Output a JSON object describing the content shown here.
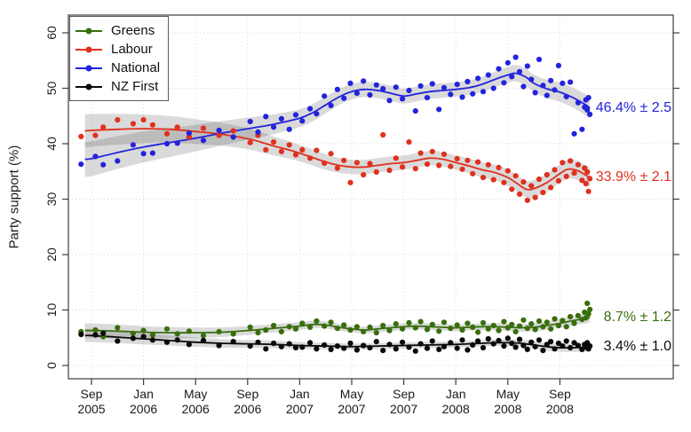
{
  "chart_data": {
    "type": "scatter",
    "description": "Opinion poll party support over time: scatter of individual polls with smoothed trend lines and gray confidence bands",
    "ylabel": "Party support (%)",
    "x_axis": {
      "unit": "months since Sep 2005",
      "ticks": [
        {
          "m": 0,
          "top": "Sep",
          "bottom": "2005"
        },
        {
          "m": 4,
          "top": "Jan",
          "bottom": "2006"
        },
        {
          "m": 8,
          "top": "May",
          "bottom": "2006"
        },
        {
          "m": 12,
          "top": "Sep",
          "bottom": "2006"
        },
        {
          "m": 16,
          "top": "Jan",
          "bottom": "2007"
        },
        {
          "m": 20,
          "top": "May",
          "bottom": "2007"
        },
        {
          "m": 24,
          "top": "Sep",
          "bottom": "2007"
        },
        {
          "m": 28,
          "top": "Jan",
          "bottom": "2008"
        },
        {
          "m": 32,
          "top": "May",
          "bottom": "2008"
        },
        {
          "m": 36,
          "top": "Sep",
          "bottom": "2008"
        }
      ]
    },
    "y_axis": {
      "ticks": [
        0,
        10,
        20,
        30,
        40,
        50,
        60
      ],
      "range": [
        0,
        60
      ]
    },
    "grid": {
      "style": "dotted",
      "color": "#d8d8d8"
    },
    "legend": {
      "position": "top-left"
    },
    "band_fill": "rgba(70,70,70,0.20)",
    "poll_columns": [
      "month",
      "Greens",
      "Labour",
      "National",
      "NZ First"
    ],
    "polls": [
      [
        -0.8,
        6.1,
        41.3,
        36.3,
        5.6
      ],
      [
        0.3,
        6.4,
        41.5,
        37.7,
        5.5
      ],
      [
        0.9,
        5.2,
        43.0,
        36.2,
        5.8
      ],
      [
        2.0,
        6.8,
        44.3,
        36.9,
        4.4
      ],
      [
        3.2,
        5.8,
        43.6,
        39.8,
        4.9
      ],
      [
        4.0,
        6.3,
        44.3,
        38.2,
        5.2
      ],
      [
        4.7,
        5.5,
        43.4,
        38.3,
        4.6
      ],
      [
        5.8,
        6.6,
        41.8,
        40.0,
        4.2
      ],
      [
        6.6,
        5.7,
        43.0,
        40.1,
        4.6
      ],
      [
        7.5,
        6.2,
        41.2,
        41.9,
        3.8
      ],
      [
        8.6,
        5.4,
        42.8,
        40.6,
        4.5
      ],
      [
        9.8,
        6.1,
        41.5,
        42.4,
        3.6
      ],
      [
        10.9,
        5.7,
        42.3,
        41.2,
        4.3
      ],
      [
        12.2,
        6.9,
        40.2,
        44.0,
        3.5
      ],
      [
        12.8,
        5.9,
        41.5,
        42.1,
        4.2
      ],
      [
        13.4,
        6.4,
        38.9,
        44.9,
        3.0
      ],
      [
        14.0,
        7.2,
        40.3,
        43.0,
        4.0
      ],
      [
        14.6,
        6.1,
        38.6,
        44.5,
        3.4
      ],
      [
        15.2,
        7.0,
        39.8,
        42.6,
        3.9
      ],
      [
        15.7,
        6.6,
        38.0,
        45.2,
        3.2
      ],
      [
        16.2,
        7.6,
        38.9,
        44.1,
        3.3
      ],
      [
        16.8,
        6.9,
        37.4,
        46.3,
        4.1
      ],
      [
        17.3,
        8.0,
        38.8,
        45.4,
        3.0
      ],
      [
        17.9,
        7.1,
        36.5,
        48.6,
        3.7
      ],
      [
        18.4,
        7.8,
        38.2,
        46.9,
        2.9
      ],
      [
        18.9,
        6.7,
        35.6,
        49.8,
        3.5
      ],
      [
        19.4,
        7.3,
        37.0,
        48.2,
        3.1
      ],
      [
        19.9,
        6.4,
        33.0,
        50.9,
        4.0
      ],
      [
        20.4,
        7.0,
        36.6,
        49.1,
        2.8
      ],
      [
        20.9,
        6.1,
        34.4,
        51.3,
        3.6
      ],
      [
        21.4,
        6.9,
        36.4,
        48.8,
        3.2
      ],
      [
        21.9,
        5.9,
        34.9,
        50.6,
        4.3
      ],
      [
        22.4,
        7.2,
        41.6,
        49.9,
        2.7
      ],
      [
        22.9,
        6.3,
        35.2,
        47.8,
        3.8
      ],
      [
        23.4,
        7.5,
        37.4,
        50.2,
        3.0
      ],
      [
        23.9,
        6.6,
        35.8,
        48.1,
        4.2
      ],
      [
        24.4,
        7.7,
        40.3,
        49.6,
        3.3
      ],
      [
        24.9,
        6.8,
        35.5,
        45.9,
        2.6
      ],
      [
        25.3,
        7.9,
        38.3,
        50.4,
        3.9
      ],
      [
        25.8,
        6.5,
        36.3,
        48.3,
        3.1
      ],
      [
        26.2,
        7.4,
        38.6,
        50.8,
        4.4
      ],
      [
        26.7,
        6.2,
        36.1,
        46.2,
        2.9
      ],
      [
        27.1,
        7.8,
        38.1,
        50.1,
        3.4
      ],
      [
        27.6,
        6.7,
        35.9,
        48.9,
        4.1
      ],
      [
        28.1,
        7.3,
        37.3,
        50.7,
        3.1
      ],
      [
        28.5,
        6.4,
        35.4,
        48.4,
        4.6
      ],
      [
        28.9,
        7.6,
        37.0,
        51.2,
        2.8
      ],
      [
        29.3,
        6.9,
        34.6,
        49.0,
        3.7
      ],
      [
        29.7,
        6.0,
        36.7,
        51.8,
        4.4
      ],
      [
        30.1,
        7.7,
        33.9,
        49.4,
        3.2
      ],
      [
        30.5,
        6.6,
        36.2,
        52.4,
        4.8
      ],
      [
        30.9,
        7.2,
        33.5,
        50.0,
        3.9
      ],
      [
        31.3,
        6.3,
        35.7,
        53.5,
        4.5
      ],
      [
        31.7,
        7.9,
        33.0,
        51.0,
        3.5
      ],
      [
        32.0,
        6.8,
        35.1,
        54.6,
        4.9
      ],
      [
        32.3,
        7.4,
        31.8,
        52.1,
        4.0
      ],
      [
        32.6,
        6.1,
        34.2,
        55.6,
        3.3
      ],
      [
        32.9,
        7.1,
        30.9,
        53.0,
        4.7
      ],
      [
        33.2,
        8.2,
        33.1,
        50.3,
        3.6
      ],
      [
        33.5,
        6.7,
        29.8,
        54.0,
        2.9
      ],
      [
        33.8,
        7.5,
        32.4,
        51.6,
        4.2
      ],
      [
        34.1,
        6.5,
        30.3,
        49.2,
        3.4
      ],
      [
        34.4,
        8.0,
        33.6,
        55.2,
        4.6
      ],
      [
        34.7,
        7.0,
        31.2,
        50.5,
        2.7
      ],
      [
        35.0,
        7.8,
        34.4,
        48.7,
        3.8
      ],
      [
        35.3,
        6.6,
        32.1,
        51.4,
        4.3
      ],
      [
        35.6,
        8.4,
        35.3,
        49.7,
        3.0
      ],
      [
        35.9,
        7.2,
        33.3,
        54.1,
        4.0
      ],
      [
        36.2,
        8.1,
        36.6,
        50.9,
        3.5
      ],
      [
        36.5,
        7.0,
        34.1,
        48.5,
        4.4
      ],
      [
        36.8,
        8.8,
        36.9,
        51.1,
        3.2
      ],
      [
        37.1,
        7.6,
        34.7,
        41.8,
        4.1
      ],
      [
        37.4,
        9.0,
        36.2,
        47.4,
        3.6
      ],
      [
        37.7,
        8.3,
        33.4,
        42.6,
        2.9
      ],
      [
        37.9,
        9.6,
        35.6,
        46.6,
        3.8
      ],
      [
        38.0,
        8.6,
        32.8,
        47.9,
        3.3
      ],
      [
        38.1,
        11.2,
        34.9,
        46.1,
        4.1
      ],
      [
        38.2,
        9.3,
        31.4,
        48.3,
        3.0
      ],
      [
        38.3,
        10.1,
        33.7,
        45.3,
        3.5
      ]
    ],
    "series": [
      {
        "key": "greens",
        "name": "Greens",
        "color": "#386e0d",
        "annotation": {
          "text": "8.7% ± 1.2",
          "value": 8.7
        },
        "trend": [
          [
            -0.5,
            6.3
          ],
          [
            0,
            6.3
          ],
          [
            2,
            6.2
          ],
          [
            4,
            6.0
          ],
          [
            6,
            5.9
          ],
          [
            8,
            5.9
          ],
          [
            10,
            6.0
          ],
          [
            12,
            6.3
          ],
          [
            14,
            6.7
          ],
          [
            16,
            7.1
          ],
          [
            17,
            7.4
          ],
          [
            18,
            7.3
          ],
          [
            19,
            6.9
          ],
          [
            20,
            6.6
          ],
          [
            21,
            6.4
          ],
          [
            22,
            6.6
          ],
          [
            23,
            6.8
          ],
          [
            24,
            7.0
          ],
          [
            25,
            7.1
          ],
          [
            26,
            7.0
          ],
          [
            27,
            6.9
          ],
          [
            28,
            6.8
          ],
          [
            29,
            6.9
          ],
          [
            30,
            7.0
          ],
          [
            31,
            7.0
          ],
          [
            32,
            6.9
          ],
          [
            33,
            6.8
          ],
          [
            34,
            6.9
          ],
          [
            35,
            7.2
          ],
          [
            36,
            7.6
          ],
          [
            37,
            8.1
          ],
          [
            38,
            8.5
          ],
          [
            38.3,
            8.7
          ]
        ],
        "band_width": [
          [
            -0.5,
            1.3
          ],
          [
            6,
            1.0
          ],
          [
            12,
            0.8
          ],
          [
            20,
            0.6
          ],
          [
            30,
            0.6
          ],
          [
            38.3,
            0.9
          ]
        ]
      },
      {
        "key": "labour",
        "name": "Labour",
        "color": "#e0301e",
        "annotation": {
          "text": "33.9% ± 2.1",
          "value": 33.9
        },
        "trend": [
          [
            -0.5,
            42.3
          ],
          [
            0,
            42.4
          ],
          [
            2,
            42.6
          ],
          [
            4,
            42.7
          ],
          [
            6,
            42.6
          ],
          [
            8,
            42.2
          ],
          [
            10,
            41.7
          ],
          [
            12,
            40.9
          ],
          [
            13,
            40.3
          ],
          [
            14,
            39.6
          ],
          [
            15,
            39.0
          ],
          [
            16,
            38.3
          ],
          [
            17,
            37.5
          ],
          [
            18,
            36.7
          ],
          [
            19,
            36.1
          ],
          [
            20,
            35.8
          ],
          [
            21,
            35.8
          ],
          [
            22,
            36.1
          ],
          [
            23,
            36.4
          ],
          [
            24,
            36.6
          ],
          [
            25,
            37.0
          ],
          [
            26,
            37.4
          ],
          [
            27,
            37.2
          ],
          [
            28,
            36.6
          ],
          [
            29,
            36.0
          ],
          [
            30,
            35.3
          ],
          [
            31,
            34.8
          ],
          [
            32,
            33.9
          ],
          [
            32.6,
            33.0
          ],
          [
            33.4,
            31.8
          ],
          [
            34,
            31.9
          ],
          [
            35,
            33.0
          ],
          [
            36,
            34.6
          ],
          [
            36.6,
            35.4
          ],
          [
            37.3,
            35.2
          ],
          [
            38,
            34.3
          ],
          [
            38.3,
            33.9
          ]
        ],
        "band_width": [
          [
            -0.5,
            3.0
          ],
          [
            6,
            2.4
          ],
          [
            12,
            1.9
          ],
          [
            16,
            1.5
          ],
          [
            20,
            1.3
          ],
          [
            28,
            1.3
          ],
          [
            33,
            1.5
          ],
          [
            38.3,
            1.8
          ]
        ]
      },
      {
        "key": "national",
        "name": "National",
        "color": "#2323dd",
        "annotation": {
          "text": "46.4% ± 2.5",
          "value": 46.4
        },
        "trend": [
          [
            -0.5,
            37.2
          ],
          [
            0,
            37.3
          ],
          [
            2,
            38.4
          ],
          [
            4,
            39.4
          ],
          [
            6,
            40.2
          ],
          [
            8,
            41.0
          ],
          [
            10,
            41.9
          ],
          [
            12,
            42.7
          ],
          [
            14,
            43.5
          ],
          [
            16,
            44.6
          ],
          [
            17,
            45.6
          ],
          [
            18,
            47.0
          ],
          [
            19,
            48.4
          ],
          [
            20,
            49.4
          ],
          [
            21,
            49.8
          ],
          [
            22,
            49.6
          ],
          [
            23,
            49.1
          ],
          [
            24,
            48.6
          ],
          [
            25,
            49.0
          ],
          [
            26,
            49.4
          ],
          [
            27,
            49.6
          ],
          [
            28,
            49.8
          ],
          [
            29,
            50.1
          ],
          [
            30,
            50.7
          ],
          [
            31,
            51.6
          ],
          [
            32,
            52.4
          ],
          [
            32.6,
            52.7
          ],
          [
            33.4,
            52.0
          ],
          [
            34,
            50.9
          ],
          [
            35,
            49.9
          ],
          [
            36,
            49.3
          ],
          [
            37,
            48.3
          ],
          [
            38,
            47.0
          ],
          [
            38.3,
            46.4
          ]
        ],
        "band_width": [
          [
            -0.5,
            3.2
          ],
          [
            6,
            2.6
          ],
          [
            12,
            2.0
          ],
          [
            16,
            1.6
          ],
          [
            20,
            1.4
          ],
          [
            28,
            1.3
          ],
          [
            33,
            1.5
          ],
          [
            38.3,
            1.9
          ]
        ]
      },
      {
        "key": "nzfirst",
        "name": "NZ First",
        "color": "#0a0a0a",
        "annotation": {
          "text": "3.4% ± 1.0",
          "value": 3.4
        },
        "trend": [
          [
            -0.5,
            5.4
          ],
          [
            0,
            5.4
          ],
          [
            2,
            5.1
          ],
          [
            4,
            4.8
          ],
          [
            6,
            4.5
          ],
          [
            8,
            4.2
          ],
          [
            10,
            4.0
          ],
          [
            12,
            3.9
          ],
          [
            14,
            3.8
          ],
          [
            16,
            3.6
          ],
          [
            18,
            3.5
          ],
          [
            20,
            3.4
          ],
          [
            22,
            3.5
          ],
          [
            24,
            3.6
          ],
          [
            26,
            3.7
          ],
          [
            28,
            3.8
          ],
          [
            29,
            3.9
          ],
          [
            30,
            4.0
          ],
          [
            31,
            4.1
          ],
          [
            32,
            4.1
          ],
          [
            33,
            4.0
          ],
          [
            34,
            3.7
          ],
          [
            35,
            3.4
          ],
          [
            36,
            3.2
          ],
          [
            37,
            3.2
          ],
          [
            38,
            3.3
          ],
          [
            38.3,
            3.4
          ]
        ],
        "band_width": [
          [
            -0.5,
            1.2
          ],
          [
            6,
            0.9
          ],
          [
            12,
            0.7
          ],
          [
            20,
            0.55
          ],
          [
            30,
            0.55
          ],
          [
            38.3,
            0.8
          ]
        ]
      }
    ]
  }
}
